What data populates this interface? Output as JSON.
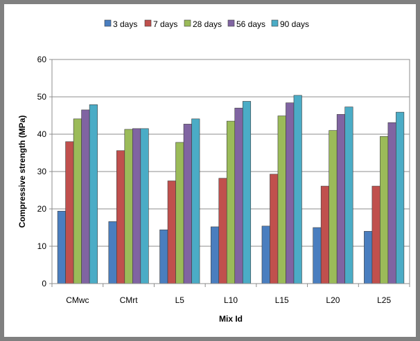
{
  "chart_data": {
    "type": "bar",
    "title": "",
    "xlabel": "Mix Id",
    "ylabel": "Compressive strength (MPa)",
    "ylim": [
      0,
      60
    ],
    "yticks": [
      0,
      10,
      20,
      30,
      40,
      50,
      60
    ],
    "grid": true,
    "legend_position": "top",
    "categories": [
      "CMwc",
      "CMrt",
      "L5",
      "L10",
      "L15",
      "L20",
      "L25"
    ],
    "series": [
      {
        "name": "3 days",
        "color": "#4a7ebf",
        "values": [
          19.4,
          16.6,
          14.4,
          15.2,
          15.4,
          15.0,
          14.0
        ]
      },
      {
        "name": "7 days",
        "color": "#c0504d",
        "values": [
          38.0,
          35.6,
          27.5,
          28.2,
          29.3,
          26.1,
          26.1
        ]
      },
      {
        "name": "28 days",
        "color": "#9bbb59",
        "values": [
          44.1,
          41.3,
          37.8,
          43.5,
          44.9,
          41.0,
          39.4
        ]
      },
      {
        "name": "56 days",
        "color": "#8064a2",
        "values": [
          46.5,
          41.5,
          42.7,
          47.0,
          48.4,
          45.3,
          43.1
        ]
      },
      {
        "name": "90 days",
        "color": "#4bacc6",
        "values": [
          47.9,
          41.5,
          44.1,
          48.8,
          50.4,
          47.3,
          45.9
        ]
      }
    ]
  }
}
